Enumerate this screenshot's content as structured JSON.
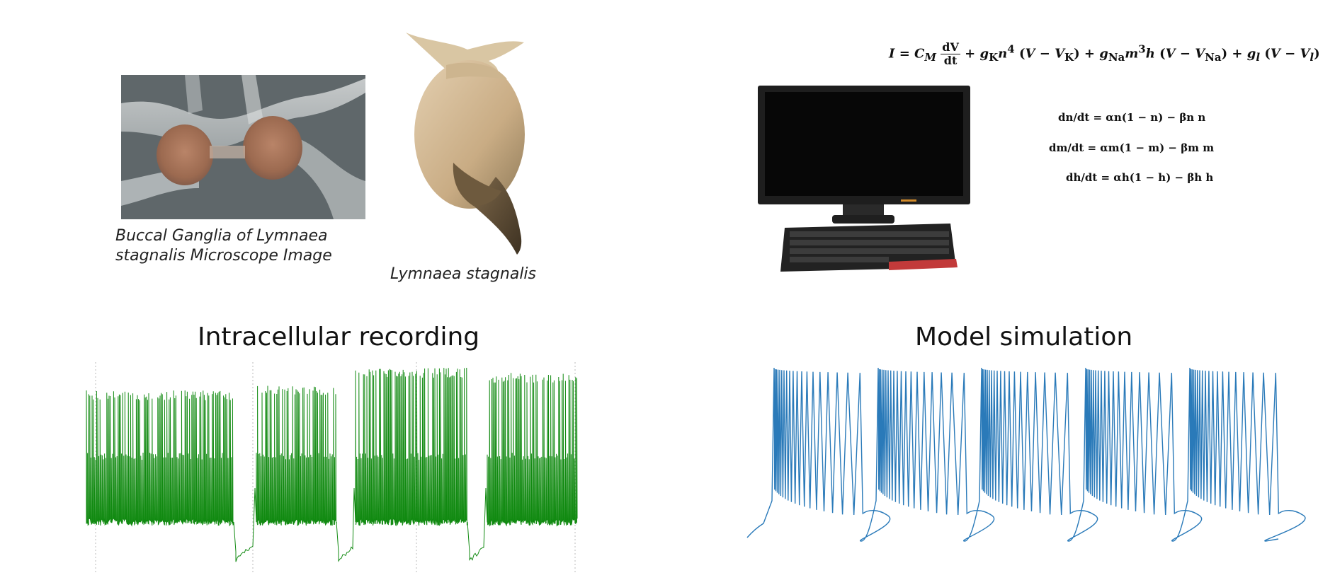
{
  "captions": {
    "ganglia": "Buccal Ganglia of Lymnaea stagnalis  Microscope Image",
    "snail": "Lymnaea stagnalis"
  },
  "equations": {
    "main_parts": [
      "I",
      "C",
      "M",
      "dV",
      "dt",
      "g",
      "K",
      "n",
      "4",
      "V",
      "V",
      "K",
      "g",
      "Na",
      "m",
      "3",
      "h",
      "V",
      "V",
      "Na",
      "g",
      "l",
      "V",
      "V",
      "l"
    ],
    "n_eq": "dn/dt = αn(1 − n) − βn n",
    "m_eq": "dm/dt = αm(1 − m) − βm m",
    "h_eq": "dh/dt = αh(1 − h) − βh h"
  },
  "titles": {
    "recording": "Intracellular recording",
    "simulation": "Model simulation"
  },
  "colors": {
    "recording_trace": "#118a11",
    "simulation_trace": "#2a7ab9",
    "keyboard_accent": "#d93030"
  },
  "icons": {
    "monitor": "computer-monitor-icon",
    "keyboard": "keyboard-icon"
  },
  "chart_data": [
    {
      "type": "line",
      "title": "Intracellular recording",
      "xlabel": "",
      "ylabel": "",
      "bursts": 4,
      "grid": true
    },
    {
      "type": "line",
      "title": "Model simulation",
      "xlabel": "",
      "ylabel": "",
      "bursts": 5,
      "grid": false
    }
  ]
}
